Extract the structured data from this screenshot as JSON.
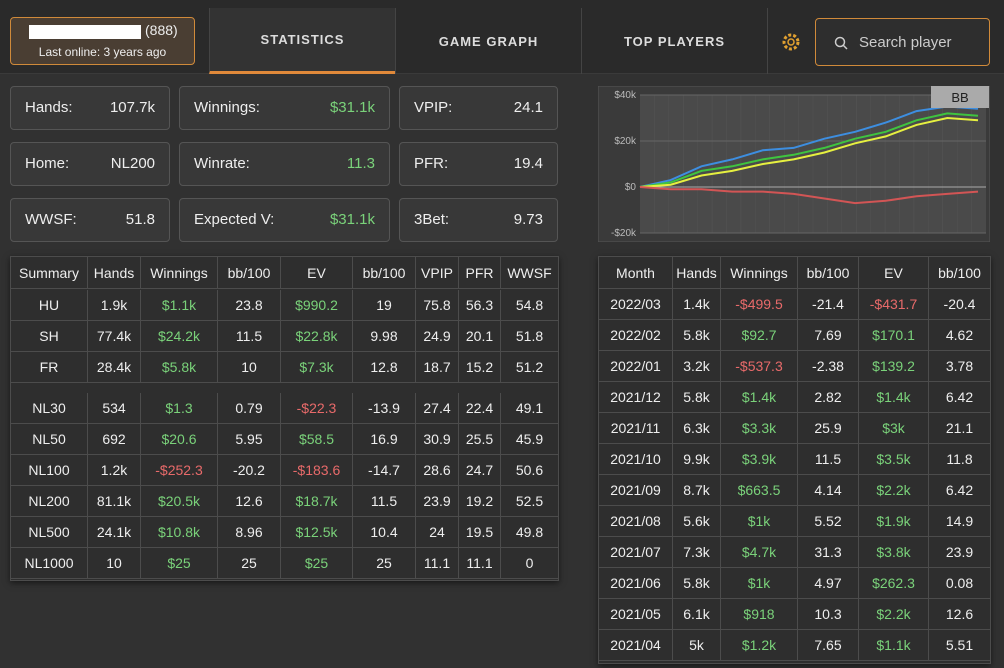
{
  "profile": {
    "id": "(888)",
    "last_online": "Last online: 3 years ago"
  },
  "tabs": [
    "STATISTICS",
    "GAME GRAPH",
    "TOP PLAYERS"
  ],
  "search_placeholder": "Search player",
  "stats": [
    {
      "label": "Hands:",
      "value": "107.7k"
    },
    {
      "label": "Winnings:",
      "value": "$31.1k"
    },
    {
      "label": "VPIP:",
      "value": "24.1"
    },
    {
      "label": "Home:",
      "value": "NL200"
    },
    {
      "label": "Winrate:",
      "value": "11.3"
    },
    {
      "label": "PFR:",
      "value": "19.4"
    },
    {
      "label": "WWSF:",
      "value": "51.8"
    },
    {
      "label": "Expected V:",
      "value": "$31.1k"
    },
    {
      "label": "3Bet:",
      "value": "9.73"
    }
  ],
  "graph": {
    "type": "line",
    "label": "BB",
    "ylim": [
      -20000,
      40000
    ],
    "yticks": [
      {
        "value": 40000,
        "label": "$40k"
      },
      {
        "value": 20000,
        "label": "$20k"
      },
      {
        "value": 0,
        "label": "$0"
      },
      {
        "value": -20000,
        "label": "-$20k"
      }
    ],
    "series": [
      {
        "color": "#3d8ee0",
        "values": [
          0,
          3000,
          9000,
          12000,
          16000,
          17000,
          21000,
          24000,
          28000,
          33000,
          35000,
          34000
        ]
      },
      {
        "color": "#3fc43f",
        "values": [
          0,
          2000,
          7000,
          9000,
          12000,
          14000,
          17000,
          21000,
          24000,
          29000,
          32000,
          31000
        ]
      },
      {
        "color": "#e6f040",
        "values": [
          0,
          1000,
          5000,
          7000,
          10000,
          12000,
          15000,
          19000,
          22000,
          27000,
          30000,
          29000
        ]
      },
      {
        "color": "#d25555",
        "values": [
          0,
          -1000,
          -1000,
          -2000,
          -2000,
          -3000,
          -5000,
          -7000,
          -6000,
          -4000,
          -3000,
          -2000
        ]
      }
    ]
  },
  "summary_table": {
    "headers": [
      "Summary",
      "Hands",
      "Winnings",
      "bb/100",
      "EV",
      "bb/100",
      "VPIP",
      "PFR",
      "WWSF"
    ],
    "groups": [
      [
        [
          "HU",
          "1.9k",
          "$1.1k",
          "23.8",
          "$990.2",
          "19",
          "75.8",
          "56.3",
          "54.8"
        ],
        [
          "SH",
          "77.4k",
          "$24.2k",
          "11.5",
          "$22.8k",
          "9.98",
          "24.9",
          "20.1",
          "51.8"
        ],
        [
          "FR",
          "28.4k",
          "$5.8k",
          "10",
          "$7.3k",
          "12.8",
          "18.7",
          "15.2",
          "51.2"
        ]
      ],
      [
        [
          "NL30",
          "534",
          "$1.3",
          "0.79",
          "-$22.3",
          "-13.9",
          "27.4",
          "22.4",
          "49.1"
        ],
        [
          "NL50",
          "692",
          "$20.6",
          "5.95",
          "$58.5",
          "16.9",
          "30.9",
          "25.5",
          "45.9"
        ],
        [
          "NL100",
          "1.2k",
          "-$252.3",
          "-20.2",
          "-$183.6",
          "-14.7",
          "28.6",
          "24.7",
          "50.6"
        ],
        [
          "NL200",
          "81.1k",
          "$20.5k",
          "12.6",
          "$18.7k",
          "11.5",
          "23.9",
          "19.2",
          "52.5"
        ],
        [
          "NL500",
          "24.1k",
          "$10.8k",
          "8.96",
          "$12.5k",
          "10.4",
          "24",
          "19.5",
          "49.8"
        ],
        [
          "NL1000",
          "10",
          "$25",
          "25",
          "$25",
          "25",
          "11.1",
          "11.1",
          "0"
        ]
      ]
    ]
  },
  "monthly_table": {
    "headers": [
      "Month",
      "Hands",
      "Winnings",
      "bb/100",
      "EV",
      "bb/100"
    ],
    "rows": [
      [
        "2022/03",
        "1.4k",
        "-$499.5",
        "-21.4",
        "-$431.7",
        "-20.4"
      ],
      [
        "2022/02",
        "5.8k",
        "$92.7",
        "7.69",
        "$170.1",
        "4.62"
      ],
      [
        "2022/01",
        "3.2k",
        "-$537.3",
        "-2.38",
        "$139.2",
        "3.78"
      ],
      [
        "2021/12",
        "5.8k",
        "$1.4k",
        "2.82",
        "$1.4k",
        "6.42"
      ],
      [
        "2021/11",
        "6.3k",
        "$3.3k",
        "25.9",
        "$3k",
        "21.1"
      ],
      [
        "2021/10",
        "9.9k",
        "$3.9k",
        "11.5",
        "$3.5k",
        "11.8"
      ],
      [
        "2021/09",
        "8.7k",
        "$663.5",
        "4.14",
        "$2.2k",
        "6.42"
      ],
      [
        "2021/08",
        "5.6k",
        "$1k",
        "5.52",
        "$1.9k",
        "14.9"
      ],
      [
        "2021/07",
        "7.3k",
        "$4.7k",
        "31.3",
        "$3.8k",
        "23.9"
      ],
      [
        "2021/06",
        "5.8k",
        "$1k",
        "4.97",
        "$262.3",
        "0.08"
      ],
      [
        "2021/05",
        "6.1k",
        "$918",
        "10.3",
        "$2.2k",
        "12.6"
      ],
      [
        "2021/04",
        "5k",
        "$1.2k",
        "7.65",
        "$1.1k",
        "5.51"
      ]
    ]
  }
}
